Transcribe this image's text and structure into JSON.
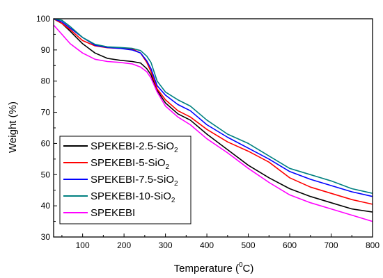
{
  "chart_data": {
    "type": "line",
    "title": "",
    "xlabel": {
      "main": "Temperature (",
      "sup": "0",
      "tail": "C)"
    },
    "ylabel": "Weight  (%)",
    "xlim": [
      30,
      800
    ],
    "ylim": [
      30,
      100
    ],
    "xticks": [
      100,
      200,
      300,
      400,
      500,
      600,
      700,
      800
    ],
    "yticks": [
      30,
      40,
      50,
      60,
      70,
      80,
      90,
      100
    ],
    "grid": false,
    "legend_placement": "bottom-left",
    "series": [
      {
        "name": "SPEKEBI-2.5-SiO2",
        "label_main": "SPEKEBI-2.5-SiO",
        "label_sub": "2",
        "color": "#000000",
        "points": [
          [
            30,
            100
          ],
          [
            50,
            98.5
          ],
          [
            70,
            96
          ],
          [
            100,
            92
          ],
          [
            130,
            89
          ],
          [
            160,
            87.3
          ],
          [
            190,
            86.7
          ],
          [
            220,
            86.3
          ],
          [
            240,
            85.8
          ],
          [
            255,
            84
          ],
          [
            265,
            82
          ],
          [
            280,
            77
          ],
          [
            300,
            73
          ],
          [
            330,
            69.5
          ],
          [
            360,
            67.5
          ],
          [
            400,
            63
          ],
          [
            450,
            58
          ],
          [
            500,
            53
          ],
          [
            550,
            49
          ],
          [
            600,
            45.5
          ],
          [
            650,
            43
          ],
          [
            700,
            41
          ],
          [
            750,
            39
          ],
          [
            800,
            38
          ]
        ]
      },
      {
        "name": "SPEKEBI-5-SiO2",
        "label_main": "SPEKEBI-5-SiO",
        "label_sub": "2",
        "color": "#ff0000",
        "points": [
          [
            30,
            100
          ],
          [
            50,
            98.5
          ],
          [
            70,
            96.5
          ],
          [
            100,
            93
          ],
          [
            130,
            91.3
          ],
          [
            160,
            90.7
          ],
          [
            190,
            90.5
          ],
          [
            220,
            90.3
          ],
          [
            240,
            89
          ],
          [
            255,
            86
          ],
          [
            265,
            83
          ],
          [
            280,
            77.5
          ],
          [
            300,
            74
          ],
          [
            330,
            70.5
          ],
          [
            360,
            68.5
          ],
          [
            400,
            64.5
          ],
          [
            450,
            60.5
          ],
          [
            500,
            57.5
          ],
          [
            550,
            54
          ],
          [
            600,
            49
          ],
          [
            650,
            46
          ],
          [
            700,
            44
          ],
          [
            750,
            42
          ],
          [
            800,
            40.5
          ]
        ]
      },
      {
        "name": "SPEKEBI-7.5-SiO2",
        "label_main": "SPEKEBI-7.5-SiO",
        "label_sub": "2",
        "color": "#0000ff",
        "points": [
          [
            30,
            100
          ],
          [
            50,
            99
          ],
          [
            70,
            97
          ],
          [
            100,
            94
          ],
          [
            130,
            91.5
          ],
          [
            160,
            90.8
          ],
          [
            190,
            90.5
          ],
          [
            220,
            90
          ],
          [
            240,
            89
          ],
          [
            255,
            86.5
          ],
          [
            265,
            84
          ],
          [
            280,
            78.5
          ],
          [
            300,
            75.5
          ],
          [
            330,
            72.5
          ],
          [
            360,
            70.5
          ],
          [
            400,
            66
          ],
          [
            450,
            62
          ],
          [
            500,
            58.5
          ],
          [
            550,
            55
          ],
          [
            600,
            51
          ],
          [
            650,
            48.5
          ],
          [
            700,
            46.5
          ],
          [
            750,
            44.5
          ],
          [
            800,
            43
          ]
        ]
      },
      {
        "name": "SPEKEBI-10-SiO2",
        "label_main": "SPEKEBI-10-SiO",
        "label_sub": "2",
        "color": "#008080",
        "points": [
          [
            30,
            100
          ],
          [
            50,
            99.5
          ],
          [
            70,
            97.5
          ],
          [
            100,
            94
          ],
          [
            130,
            91.8
          ],
          [
            160,
            91
          ],
          [
            190,
            90.8
          ],
          [
            220,
            90.5
          ],
          [
            240,
            89.8
          ],
          [
            255,
            88
          ],
          [
            265,
            86
          ],
          [
            280,
            80
          ],
          [
            300,
            76.5
          ],
          [
            330,
            74
          ],
          [
            360,
            72
          ],
          [
            400,
            67.5
          ],
          [
            450,
            63
          ],
          [
            500,
            60
          ],
          [
            550,
            56
          ],
          [
            600,
            52
          ],
          [
            650,
            50
          ],
          [
            700,
            48
          ],
          [
            750,
            45.5
          ],
          [
            800,
            44
          ]
        ]
      },
      {
        "name": "SPEKEBI",
        "label_main": "SPEKEBI",
        "label_sub": "",
        "color": "#ff00ff",
        "points": [
          [
            30,
            98
          ],
          [
            50,
            95
          ],
          [
            70,
            92
          ],
          [
            100,
            89
          ],
          [
            130,
            87
          ],
          [
            160,
            86.3
          ],
          [
            190,
            86
          ],
          [
            220,
            85.5
          ],
          [
            240,
            84.5
          ],
          [
            255,
            83
          ],
          [
            265,
            81
          ],
          [
            280,
            76.5
          ],
          [
            300,
            72
          ],
          [
            330,
            68.5
          ],
          [
            360,
            66
          ],
          [
            400,
            61.5
          ],
          [
            450,
            57
          ],
          [
            500,
            52
          ],
          [
            550,
            47.5
          ],
          [
            600,
            43.5
          ],
          [
            650,
            41
          ],
          [
            700,
            39
          ],
          [
            750,
            37
          ],
          [
            800,
            35
          ]
        ]
      }
    ]
  }
}
